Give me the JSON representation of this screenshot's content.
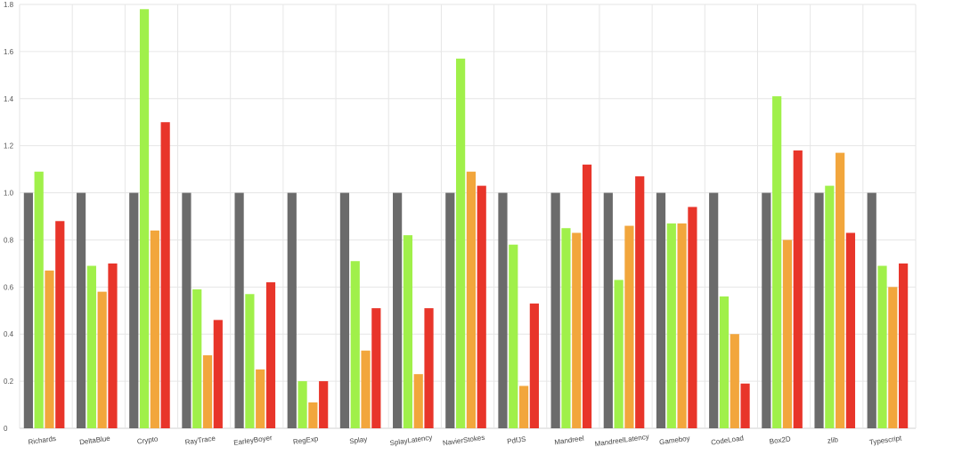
{
  "chart_data": {
    "type": "bar",
    "title": "",
    "xlabel": "",
    "ylabel": "",
    "ylim": [
      0,
      1.8
    ],
    "yticks": [
      "0",
      "0.2",
      "0.4",
      "0.6",
      "0.8",
      "1.0",
      "1.2",
      "1.4",
      "1.6",
      "1.8"
    ],
    "grid": true,
    "legend": "none",
    "categories": [
      "Richards",
      "DeltaBlue",
      "Crypto",
      "RayTrace",
      "EarleyBoyer",
      "RegExp",
      "Splay",
      "SplayLatency",
      "NavierStokes",
      "PdfJS",
      "Mandreel",
      "MandreelLatency",
      "Gameboy",
      "CodeLoad",
      "Box2D",
      "zlib",
      "Typescript"
    ],
    "series": [
      {
        "color": "#6b6b6b",
        "values": [
          1.0,
          1.0,
          1.0,
          1.0,
          1.0,
          1.0,
          1.0,
          1.0,
          1.0,
          1.0,
          1.0,
          1.0,
          1.0,
          1.0,
          1.0,
          1.0,
          1.0
        ]
      },
      {
        "color": "#a0f04a",
        "values": [
          1.09,
          0.69,
          1.78,
          0.59,
          0.57,
          0.2,
          0.71,
          0.82,
          1.57,
          0.78,
          0.85,
          0.63,
          0.87,
          0.56,
          1.41,
          1.03,
          0.69
        ]
      },
      {
        "color": "#f2a63c",
        "values": [
          0.67,
          0.58,
          0.84,
          0.31,
          0.25,
          0.11,
          0.33,
          0.23,
          1.09,
          0.18,
          0.83,
          0.86,
          0.87,
          0.4,
          0.8,
          1.17,
          0.6
        ]
      },
      {
        "color": "#e8352a",
        "values": [
          0.88,
          0.7,
          1.3,
          0.46,
          0.62,
          0.2,
          0.51,
          0.51,
          1.03,
          0.53,
          1.12,
          1.07,
          0.94,
          0.19,
          1.18,
          0.83,
          0.7
        ]
      }
    ]
  }
}
